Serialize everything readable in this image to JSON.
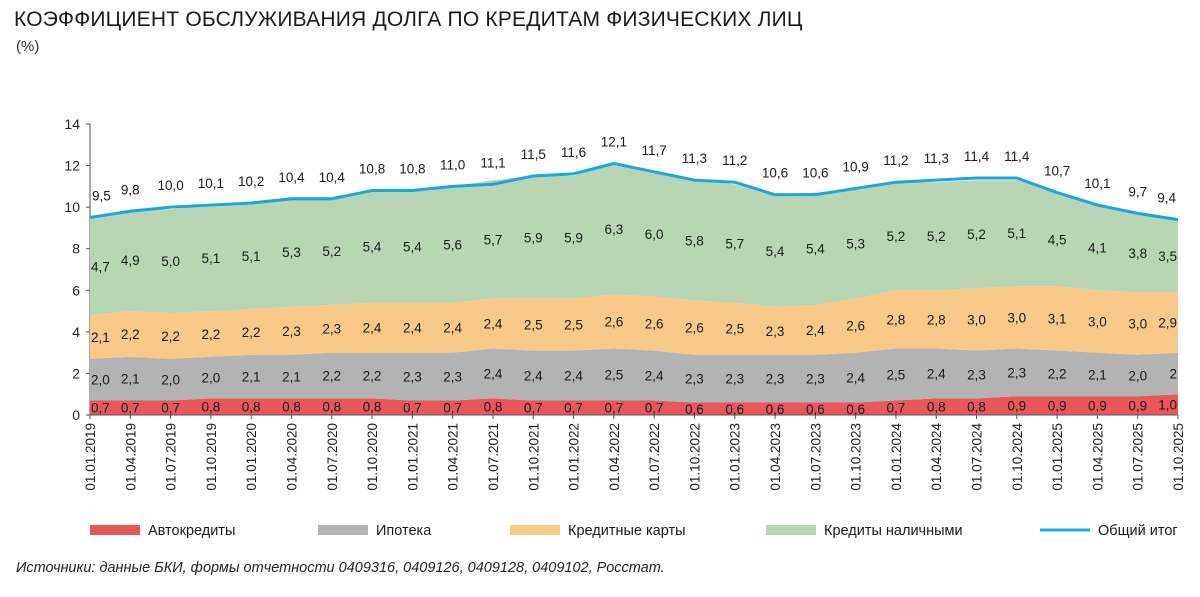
{
  "header": {
    "title": "КОЭФФИЦИЕНТ ОБСЛУЖИВАНИЯ ДОЛГА ПО КРЕДИТАМ ФИЗИЧЕСКИХ ЛИЦ",
    "unit": "(%)"
  },
  "footer": {
    "source": "Источники: данные БКИ, формы отчетности 0409316, 0409126, 0409128, 0409102, Росстат."
  },
  "chart_data": {
    "type": "area",
    "title": "КОЭФФИЦИЕНТ ОБСЛУЖИВАНИЯ ДОЛГА ПО КРЕДИТАМ ФИЗИЧЕСКИХ ЛИЦ",
    "ylabel": "(%)",
    "ylim": [
      0,
      14
    ],
    "yticks": [
      0,
      2,
      4,
      6,
      8,
      10,
      12,
      14
    ],
    "legend_position": "bottom",
    "categories": [
      "01.01.2019",
      "01.04.2019",
      "01.07.2019",
      "01.10.2019",
      "01.01.2020",
      "01.04.2020",
      "01.07.2020",
      "01.10.2020",
      "01.01.2021",
      "01.04.2021",
      "01.07.2021",
      "01.10.2021",
      "01.01.2022",
      "01.04.2022",
      "01.07.2022",
      "01.10.2022",
      "01.01.2023",
      "01.04.2023",
      "01.07.2023",
      "01.10.2023",
      "01.01.2024",
      "01.04.2024",
      "01.07.2024",
      "01.10.2024",
      "01.01.2025",
      "01.04.2025",
      "01.07.2025",
      "01.10.2025"
    ],
    "series": [
      {
        "name": "Автокредиты",
        "kind": "stacked-area",
        "color": "#e8575a",
        "values": [
          0.7,
          0.7,
          0.7,
          0.8,
          0.8,
          0.8,
          0.8,
          0.8,
          0.7,
          0.7,
          0.8,
          0.7,
          0.7,
          0.7,
          0.7,
          0.6,
          0.6,
          0.6,
          0.6,
          0.6,
          0.7,
          0.8,
          0.8,
          0.9,
          0.9,
          0.9,
          0.9,
          1.0
        ],
        "labels": [
          "0,7",
          "0,7",
          "0,7",
          "0,8",
          "0,8",
          "0,8",
          "0,8",
          "0,8",
          "0,7",
          "0,7",
          "0,8",
          "0,7",
          "0,7",
          "0,7",
          "0,7",
          "0,6",
          "0,6",
          "0,6",
          "0,6",
          "0,6",
          "0,7",
          "0,8",
          "0,8",
          "0,9",
          "0,9",
          "0,9",
          "0,9",
          "1,0"
        ]
      },
      {
        "name": "Ипотека",
        "kind": "stacked-area",
        "color": "#b3b3b3",
        "values": [
          2.0,
          2.1,
          2.0,
          2.0,
          2.1,
          2.1,
          2.2,
          2.2,
          2.3,
          2.3,
          2.4,
          2.4,
          2.4,
          2.5,
          2.4,
          2.3,
          2.3,
          2.3,
          2.3,
          2.4,
          2.5,
          2.4,
          2.3,
          2.3,
          2.2,
          2.1,
          2.0,
          2.0
        ],
        "labels": [
          "2,0",
          "2,1",
          "2,0",
          "2,0",
          "2,1",
          "2,1",
          "2,2",
          "2,2",
          "2,3",
          "2,3",
          "2,4",
          "2,4",
          "2,4",
          "2,5",
          "2,4",
          "2,3",
          "2,3",
          "2,3",
          "2,3",
          "2,4",
          "2,5",
          "2,4",
          "2,3",
          "2,3",
          "2,2",
          "2,1",
          "2,0",
          "2"
        ]
      },
      {
        "name": "Кредитные карты",
        "kind": "stacked-area",
        "color": "#f9c98a",
        "values": [
          2.1,
          2.2,
          2.2,
          2.2,
          2.2,
          2.3,
          2.3,
          2.4,
          2.4,
          2.4,
          2.4,
          2.5,
          2.5,
          2.6,
          2.6,
          2.6,
          2.5,
          2.3,
          2.4,
          2.6,
          2.8,
          2.8,
          3.0,
          3.0,
          3.1,
          3.0,
          3.0,
          2.9
        ],
        "labels": [
          "2,1",
          "2,2",
          "2,2",
          "2,2",
          "2,2",
          "2,3",
          "2,3",
          "2,4",
          "2,4",
          "2,4",
          "2,4",
          "2,5",
          "2,5",
          "2,6",
          "2,6",
          "2,6",
          "2,5",
          "2,3",
          "2,4",
          "2,6",
          "2,8",
          "2,8",
          "3,0",
          "3,0",
          "3,1",
          "3,0",
          "3,0",
          "2,9"
        ]
      },
      {
        "name": "Кредиты наличными",
        "kind": "stacked-area",
        "color": "#b8d6b4",
        "values": [
          4.7,
          4.9,
          5.0,
          5.1,
          5.1,
          5.3,
          5.2,
          5.4,
          5.4,
          5.6,
          5.7,
          5.9,
          5.9,
          6.3,
          6.0,
          5.8,
          5.7,
          5.4,
          5.4,
          5.3,
          5.2,
          5.2,
          5.2,
          5.1,
          4.5,
          4.1,
          3.8,
          3.5
        ],
        "labels": [
          "4,7",
          "4,9",
          "5,0",
          "5,1",
          "5,1",
          "5,3",
          "5,2",
          "5,4",
          "5,4",
          "5,6",
          "5,7",
          "5,9",
          "5,9",
          "6,3",
          "6,0",
          "5,8",
          "5,7",
          "5,4",
          "5,4",
          "5,3",
          "5,2",
          "5,2",
          "5,2",
          "5,1",
          "4,5",
          "4,1",
          "3,8",
          "3,5"
        ]
      },
      {
        "name": "Общий итог",
        "kind": "line",
        "color": "#1aa7e0",
        "values": [
          9.5,
          9.8,
          10.0,
          10.1,
          10.2,
          10.4,
          10.4,
          10.8,
          10.8,
          11.0,
          11.1,
          11.5,
          11.6,
          12.1,
          11.7,
          11.3,
          11.2,
          10.6,
          10.6,
          10.9,
          11.2,
          11.3,
          11.4,
          11.4,
          10.7,
          10.1,
          9.7,
          9.4
        ],
        "labels": [
          "9,5",
          "9,8",
          "10,0",
          "10,1",
          "10,2",
          "10,4",
          "10,4",
          "10,8",
          "10,8",
          "11,0",
          "11,1",
          "11,5",
          "11,6",
          "12,1",
          "11,7",
          "11,3",
          "11,2",
          "10,6",
          "10,6",
          "10,9",
          "11,2",
          "11,3",
          "11,4",
          "11,4",
          "10,7",
          "10,1",
          "9,7",
          "9,4"
        ]
      }
    ]
  }
}
